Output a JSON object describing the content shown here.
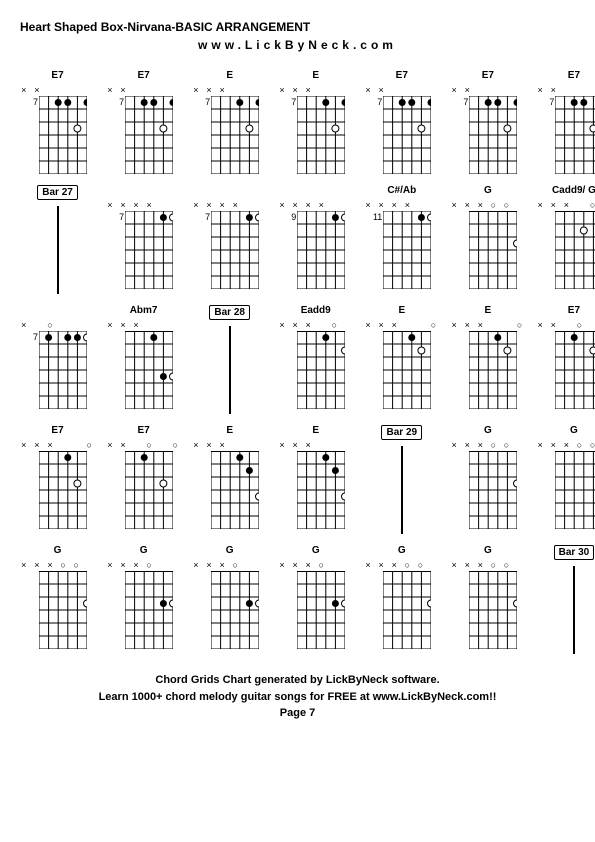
{
  "header": {
    "title": "Heart Shaped Box-Nirvana-BASIC ARRANGEMENT",
    "subtitle": "www.LickByNeck.com"
  },
  "footer": {
    "line1": "Chord Grids Chart generated by LickByNeck software.",
    "line2": "Learn 1000+ chord melody guitar songs for FREE at www.LickByNeck.com!!",
    "line3": "Page 7"
  },
  "colors": {
    "background": "#ffffff",
    "text": "#000000",
    "grid_line": "#000000",
    "dot": "#000000"
  },
  "diagram": {
    "strings": 6,
    "frets": 6,
    "width": 48,
    "height": 78,
    "string_spacing": 9.6,
    "fret_spacing": 13
  },
  "cells": [
    {
      "type": "chord",
      "name": "E7",
      "fret": "7",
      "mutes": "XX    ",
      "dots": [
        {
          "s": 3,
          "f": 1,
          "open": false
        },
        {
          "s": 4,
          "f": 1,
          "open": false
        },
        {
          "s": 6,
          "f": 1,
          "open": false
        },
        {
          "s": 5,
          "f": 3,
          "open": true
        }
      ]
    },
    {
      "type": "chord",
      "name": "E7",
      "fret": "7",
      "mutes": "XX    ",
      "dots": [
        {
          "s": 3,
          "f": 1,
          "open": false
        },
        {
          "s": 4,
          "f": 1,
          "open": false
        },
        {
          "s": 6,
          "f": 1,
          "open": false
        },
        {
          "s": 5,
          "f": 3,
          "open": true
        }
      ]
    },
    {
      "type": "chord",
      "name": "E",
      "fret": "7",
      "mutes": "XXX   ",
      "dots": [
        {
          "s": 4,
          "f": 1,
          "open": false
        },
        {
          "s": 6,
          "f": 1,
          "open": false
        },
        {
          "s": 5,
          "f": 3,
          "open": true
        }
      ]
    },
    {
      "type": "chord",
      "name": "E",
      "fret": "7",
      "mutes": "XXX   ",
      "dots": [
        {
          "s": 4,
          "f": 1,
          "open": false
        },
        {
          "s": 6,
          "f": 1,
          "open": false
        },
        {
          "s": 5,
          "f": 3,
          "open": true
        }
      ]
    },
    {
      "type": "chord",
      "name": "E7",
      "fret": "7",
      "mutes": "XX    ",
      "dots": [
        {
          "s": 3,
          "f": 1,
          "open": false
        },
        {
          "s": 4,
          "f": 1,
          "open": false
        },
        {
          "s": 6,
          "f": 1,
          "open": false
        },
        {
          "s": 5,
          "f": 3,
          "open": true
        }
      ]
    },
    {
      "type": "chord",
      "name": "E7",
      "fret": "7",
      "mutes": "XX    ",
      "dots": [
        {
          "s": 3,
          "f": 1,
          "open": false
        },
        {
          "s": 4,
          "f": 1,
          "open": false
        },
        {
          "s": 6,
          "f": 1,
          "open": false
        },
        {
          "s": 5,
          "f": 3,
          "open": true
        }
      ]
    },
    {
      "type": "chord",
      "name": "E7",
      "fret": "7",
      "mutes": "XX    ",
      "dots": [
        {
          "s": 3,
          "f": 1,
          "open": false
        },
        {
          "s": 4,
          "f": 1,
          "open": false
        },
        {
          "s": 6,
          "f": 1,
          "open": false
        },
        {
          "s": 5,
          "f": 3,
          "open": true
        }
      ]
    },
    {
      "type": "bar",
      "label": "Bar 27"
    },
    {
      "type": "chord",
      "name": "",
      "fret": "7",
      "mutes": "XXXX  ",
      "dots": [
        {
          "s": 5,
          "f": 1,
          "open": false
        },
        {
          "s": 6,
          "f": 1,
          "open": true
        }
      ]
    },
    {
      "type": "chord",
      "name": "",
      "fret": "7",
      "mutes": "XXXX  ",
      "dots": [
        {
          "s": 5,
          "f": 1,
          "open": false
        },
        {
          "s": 6,
          "f": 1,
          "open": true
        }
      ]
    },
    {
      "type": "chord",
      "name": "",
      "fret": "9",
      "mutes": "XXXX  ",
      "dots": [
        {
          "s": 5,
          "f": 1,
          "open": false
        },
        {
          "s": 6,
          "f": 1,
          "open": true
        }
      ]
    },
    {
      "type": "chord",
      "name": "C#/Ab",
      "fret": "11",
      "mutes": "XXXX  ",
      "dots": [
        {
          "s": 5,
          "f": 1,
          "open": false
        },
        {
          "s": 6,
          "f": 1,
          "open": true
        }
      ]
    },
    {
      "type": "chord",
      "name": "G",
      "fret": "",
      "mutes": "XXXOO ",
      "dots": [
        {
          "s": 6,
          "f": 3,
          "open": true
        }
      ]
    },
    {
      "type": "chord",
      "name": "Cadd9/ G",
      "fret": "",
      "mutes": "XXX OO",
      "dots": [
        {
          "s": 4,
          "f": 2,
          "open": true
        }
      ]
    },
    {
      "type": "chord",
      "name": "",
      "fret": "7",
      "mutes": "X O   ",
      "dots": [
        {
          "s": 2,
          "f": 1,
          "open": false
        },
        {
          "s": 4,
          "f": 1,
          "open": false
        },
        {
          "s": 5,
          "f": 1,
          "open": false
        },
        {
          "s": 6,
          "f": 1,
          "open": true
        }
      ]
    },
    {
      "type": "chord",
      "name": "Abm7",
      "fret": "",
      "mutes": "XXX   ",
      "dots": [
        {
          "s": 4,
          "f": 1,
          "open": false
        },
        {
          "s": 5,
          "f": 4,
          "open": false
        },
        {
          "s": 6,
          "f": 4,
          "open": true
        }
      ]
    },
    {
      "type": "bar",
      "label": "Bar 28"
    },
    {
      "type": "chord",
      "name": "Eadd9",
      "fret": "",
      "mutes": "XXX O ",
      "dots": [
        {
          "s": 4,
          "f": 1,
          "open": false
        },
        {
          "s": 6,
          "f": 2,
          "open": true
        }
      ]
    },
    {
      "type": "chord",
      "name": "E",
      "fret": "",
      "mutes": "XXX  O",
      "dots": [
        {
          "s": 4,
          "f": 1,
          "open": false
        },
        {
          "s": 5,
          "f": 2,
          "open": true
        }
      ]
    },
    {
      "type": "chord",
      "name": "E",
      "fret": "",
      "mutes": "XXX  O",
      "dots": [
        {
          "s": 4,
          "f": 1,
          "open": false
        },
        {
          "s": 5,
          "f": 2,
          "open": true
        }
      ]
    },
    {
      "type": "chord",
      "name": "E7",
      "fret": "",
      "mutes": "XX O O",
      "dots": [
        {
          "s": 3,
          "f": 1,
          "open": false
        },
        {
          "s": 5,
          "f": 2,
          "open": true
        }
      ]
    },
    {
      "type": "chord",
      "name": "E7",
      "fret": "",
      "mutes": "XXX  O",
      "dots": [
        {
          "s": 4,
          "f": 1,
          "open": false
        },
        {
          "s": 5,
          "f": 3,
          "open": true
        }
      ]
    },
    {
      "type": "chord",
      "name": "E7",
      "fret": "",
      "mutes": "XX O O",
      "dots": [
        {
          "s": 3,
          "f": 1,
          "open": false
        },
        {
          "s": 5,
          "f": 3,
          "open": true
        }
      ]
    },
    {
      "type": "chord",
      "name": "E",
      "fret": "",
      "mutes": "XXX   ",
      "dots": [
        {
          "s": 4,
          "f": 1,
          "open": false
        },
        {
          "s": 5,
          "f": 2,
          "open": false
        },
        {
          "s": 6,
          "f": 4,
          "open": true
        }
      ]
    },
    {
      "type": "chord",
      "name": "E",
      "fret": "",
      "mutes": "XXX   ",
      "dots": [
        {
          "s": 4,
          "f": 1,
          "open": false
        },
        {
          "s": 5,
          "f": 2,
          "open": false
        },
        {
          "s": 6,
          "f": 4,
          "open": true
        }
      ]
    },
    {
      "type": "bar",
      "label": "Bar 29"
    },
    {
      "type": "chord",
      "name": "G",
      "fret": "",
      "mutes": "XXXOO ",
      "dots": [
        {
          "s": 6,
          "f": 3,
          "open": true
        }
      ]
    },
    {
      "type": "chord",
      "name": "G",
      "fret": "",
      "mutes": "XXXOO ",
      "dots": [
        {
          "s": 6,
          "f": 3,
          "open": true
        }
      ]
    },
    {
      "type": "chord",
      "name": "G",
      "fret": "",
      "mutes": "XXXOO ",
      "dots": [
        {
          "s": 6,
          "f": 3,
          "open": true
        }
      ]
    },
    {
      "type": "chord",
      "name": "G",
      "fret": "",
      "mutes": "XXXO  ",
      "dots": [
        {
          "s": 5,
          "f": 3,
          "open": false
        },
        {
          "s": 6,
          "f": 3,
          "open": true
        }
      ]
    },
    {
      "type": "chord",
      "name": "G",
      "fret": "",
      "mutes": "XXXO  ",
      "dots": [
        {
          "s": 5,
          "f": 3,
          "open": false
        },
        {
          "s": 6,
          "f": 3,
          "open": true
        }
      ]
    },
    {
      "type": "chord",
      "name": "G",
      "fret": "",
      "mutes": "XXXO  ",
      "dots": [
        {
          "s": 5,
          "f": 3,
          "open": false
        },
        {
          "s": 6,
          "f": 3,
          "open": true
        }
      ]
    },
    {
      "type": "chord",
      "name": "G",
      "fret": "",
      "mutes": "XXXOO ",
      "dots": [
        {
          "s": 6,
          "f": 3,
          "open": true
        }
      ]
    },
    {
      "type": "chord",
      "name": "G",
      "fret": "",
      "mutes": "XXXOO ",
      "dots": [
        {
          "s": 6,
          "f": 3,
          "open": true
        }
      ]
    },
    {
      "type": "bar",
      "label": "Bar 30"
    }
  ]
}
